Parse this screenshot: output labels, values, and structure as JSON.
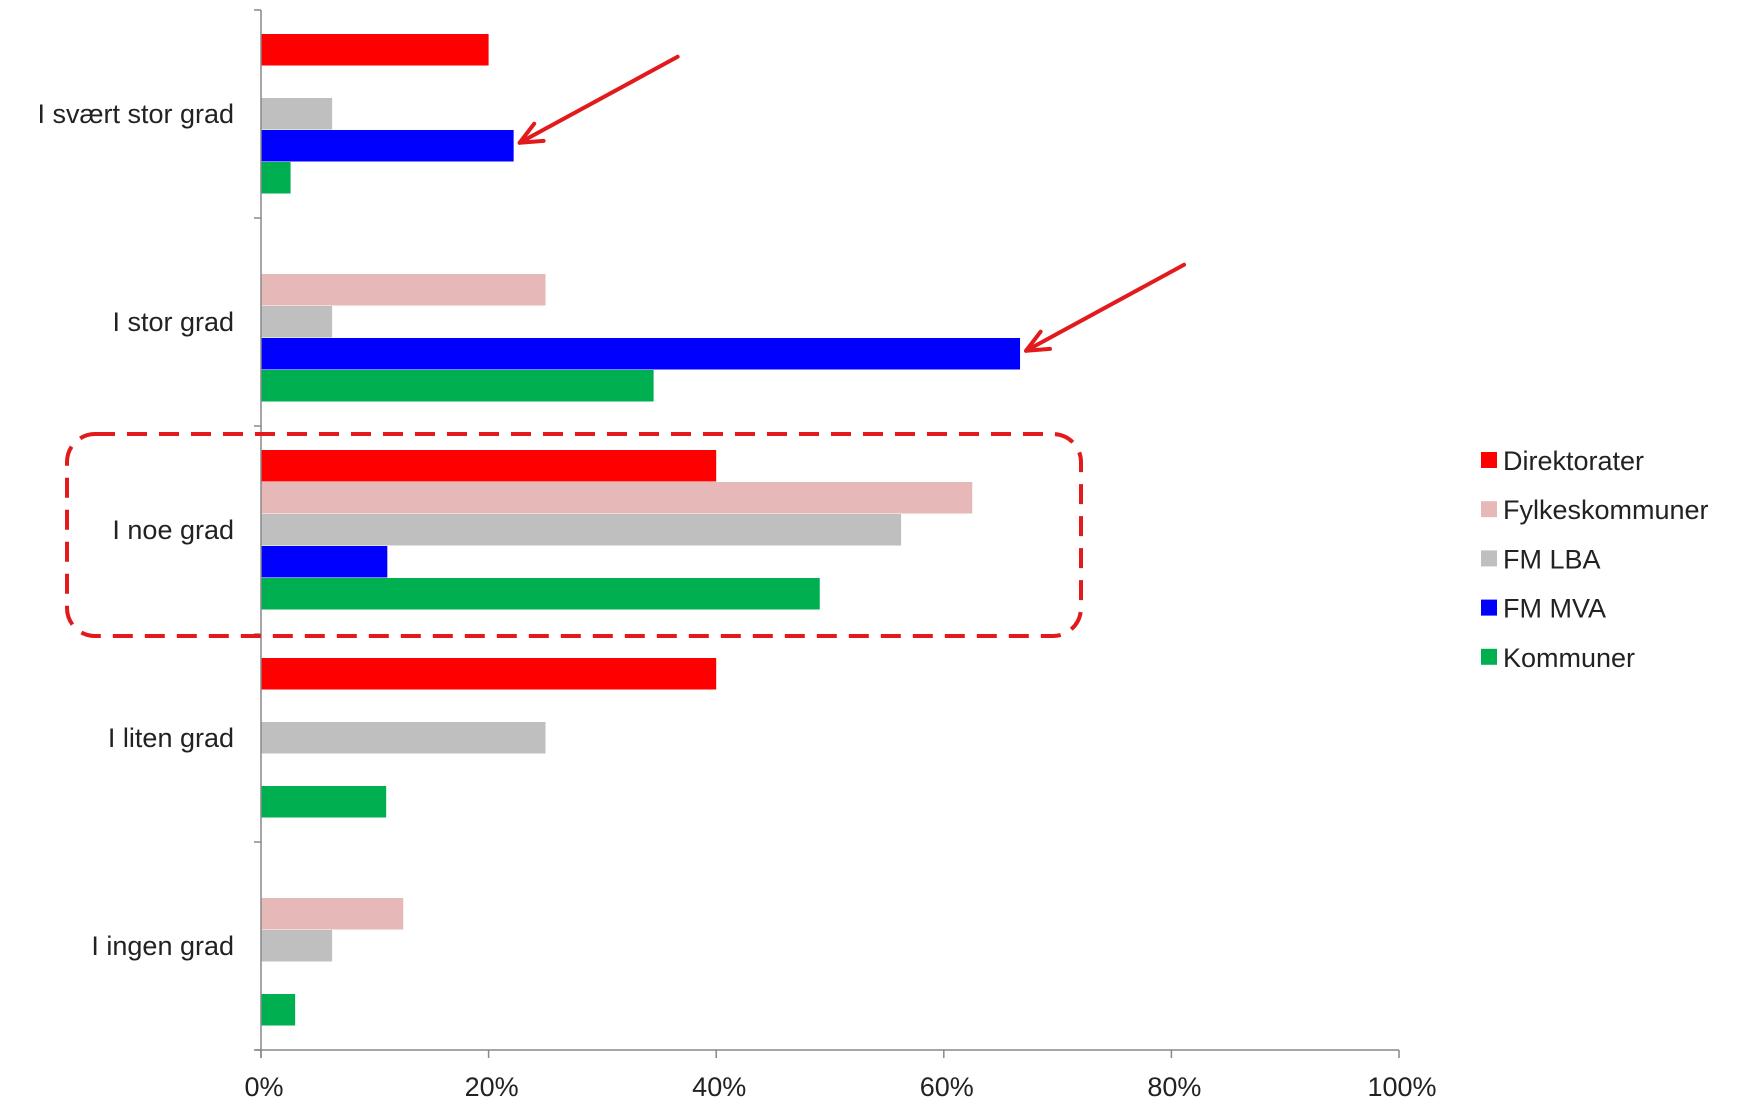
{
  "chart_data": {
    "type": "bar",
    "orientation": "horizontal",
    "categories": [
      "I svært stor grad",
      "I stor grad",
      "I noe grad",
      "I liten grad",
      "I ingen grad"
    ],
    "series": [
      {
        "name": "Direktorater",
        "color": "#ff0000",
        "values": [
          20,
          0,
          40,
          40,
          0
        ]
      },
      {
        "name": "Fylkeskommuner",
        "color": "#e6b8b7",
        "values": [
          0,
          25,
          62.5,
          0,
          12.5
        ]
      },
      {
        "name": "FM LBA",
        "color": "#bfbfbf",
        "values": [
          6.25,
          6.25,
          56.25,
          25,
          6.25
        ]
      },
      {
        "name": "FM MVA",
        "color": "#0000ff",
        "values": [
          22.2,
          66.7,
          11.1,
          0,
          0
        ]
      },
      {
        "name": "Kommuner",
        "color": "#00b050",
        "values": [
          2.6,
          34.5,
          49.1,
          11,
          3
        ]
      }
    ],
    "xlim": [
      0,
      100
    ],
    "xticks": [
      "0%",
      "20%",
      "40%",
      "60%",
      "80%",
      "100%"
    ],
    "grid": false,
    "legend_position": "right",
    "annotations": [
      {
        "type": "arrow",
        "color": "#e31a1c",
        "points_to": {
          "category": "I svært stor grad",
          "series": "FM MVA"
        }
      },
      {
        "type": "arrow",
        "color": "#e31a1c",
        "points_to": {
          "category": "I stor grad",
          "series": "FM MVA"
        }
      },
      {
        "type": "dashed-box",
        "color": "#e31a1c",
        "highlights": "I noe grad"
      }
    ]
  }
}
